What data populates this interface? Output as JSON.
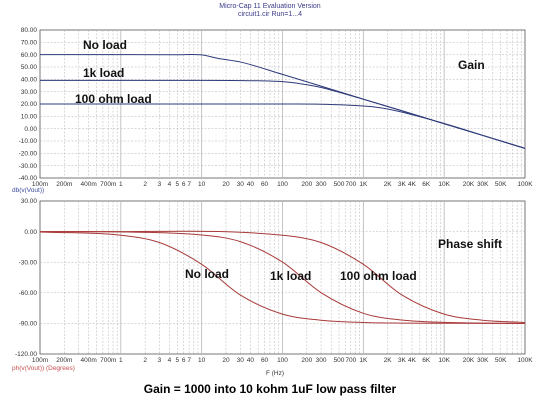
{
  "header": {
    "title": "Micro-Cap 11 Evaluation Version",
    "subtitle": "circuit1.cir Run=1...4"
  },
  "caption": "Gain = 1000 into 10 kohm 1uF low pass filter",
  "colors": {
    "gain_curve": "#2e3a7a",
    "phase_curve": "#a83a3a",
    "gain_label": "#1e3c8c",
    "phase_label": "#cc1f1f",
    "gain_axis_label": "#3a4aa0",
    "phase_axis_label": "#c85050",
    "grid": "#b5b5b5"
  },
  "x_ticks": [
    "100m",
    "200m",
    "400m",
    "700m",
    "1",
    "2",
    "3",
    "4",
    "5",
    "6",
    "7",
    "10",
    "20",
    "30",
    "40",
    "60",
    "100",
    "200",
    "300",
    "500",
    "700",
    "1K",
    "2K",
    "3K",
    "4K",
    "6K",
    "10K",
    "20K",
    "30K",
    "50K",
    "100K"
  ],
  "x_tick_values": [
    0.1,
    0.2,
    0.4,
    0.7,
    1,
    2,
    3,
    4,
    5,
    6,
    7,
    10,
    20,
    30,
    40,
    60,
    100,
    200,
    300,
    500,
    700,
    1000,
    2000,
    3000,
    4000,
    6000,
    10000,
    20000,
    30000,
    50000,
    100000
  ],
  "x_label": "F (Hz)",
  "chart_data": [
    {
      "type": "line",
      "x_scale": "log",
      "xlim": [
        0.1,
        100000
      ],
      "ylim": [
        -40,
        80
      ],
      "y_ticks": [
        "80.00",
        "70.00",
        "60.00",
        "50.00",
        "40.00",
        "30.00",
        "20.00",
        "10.00",
        "0.00",
        "-10.00",
        "-20.00",
        "-30.00",
        "-40.00"
      ],
      "y_tick_values": [
        80,
        70,
        60,
        50,
        40,
        30,
        20,
        10,
        0,
        -10,
        -20,
        -30,
        -40
      ],
      "y_axis_label": "db(v(Vout))",
      "label": "Gain",
      "series": [
        {
          "name": "No load",
          "x": [
            0.1,
            1,
            5,
            10,
            15.9,
            30,
            100,
            300,
            1000,
            3000,
            10000,
            30000,
            100000
          ],
          "y": [
            60,
            60,
            59.96,
            59.83,
            57,
            54.1,
            44,
            34.5,
            24,
            14.5,
            4,
            -5.5,
            -16
          ]
        },
        {
          "name": "1k load",
          "x": [
            0.1,
            1,
            10,
            50,
            100,
            174,
            300,
            1000,
            3000,
            10000,
            30000,
            100000
          ],
          "y": [
            39.2,
            39.2,
            39.2,
            38.8,
            38.1,
            36.2,
            33.4,
            23.8,
            14.5,
            4,
            -5.5,
            -16
          ]
        },
        {
          "name": "100 ohm load",
          "x": [
            0.1,
            1,
            100,
            300,
            1000,
            1600,
            3000,
            10000,
            30000,
            100000
          ],
          "y": [
            20,
            20,
            20,
            19.85,
            18.4,
            17,
            13.4,
            4.2,
            -5.4,
            -16
          ]
        }
      ]
    },
    {
      "type": "line",
      "x_scale": "log",
      "xlim": [
        0.1,
        100000
      ],
      "ylim": [
        -120,
        30
      ],
      "y_ticks": [
        "30.00",
        "0.00",
        "-30.00",
        "-60.00",
        "-90.00",
        "-120.00"
      ],
      "y_tick_values": [
        30,
        0,
        -30,
        -60,
        -90,
        -120
      ],
      "y_axis_label": "ph(v(Vout)) (Degrees)",
      "label": "Phase shift",
      "series": [
        {
          "name": "No load",
          "x": [
            0.1,
            1,
            3,
            10,
            30,
            100,
            300,
            1000,
            3000,
            10000,
            100000
          ],
          "y": [
            -0.4,
            -3.6,
            -10.7,
            -32.1,
            -62.1,
            -80.9,
            -86.9,
            -89.1,
            -89.7,
            -89.9,
            -90
          ]
        },
        {
          "name": "1k load",
          "x": [
            0.1,
            1,
            10,
            30,
            100,
            300,
            1000,
            3000,
            10000,
            100000
          ],
          "y": [
            0,
            -0.3,
            -3.3,
            -9.8,
            -29.9,
            -59.9,
            -80.1,
            -86.7,
            -89,
            -90
          ]
        },
        {
          "name": "100 ohm load",
          "x": [
            0.1,
            1,
            100,
            300,
            1000,
            3000,
            10000,
            30000,
            100000
          ],
          "y": [
            0,
            0,
            -3.6,
            -10.7,
            -32.1,
            -62.1,
            -80.9,
            -86.9,
            -89.1
          ]
        }
      ]
    }
  ]
}
